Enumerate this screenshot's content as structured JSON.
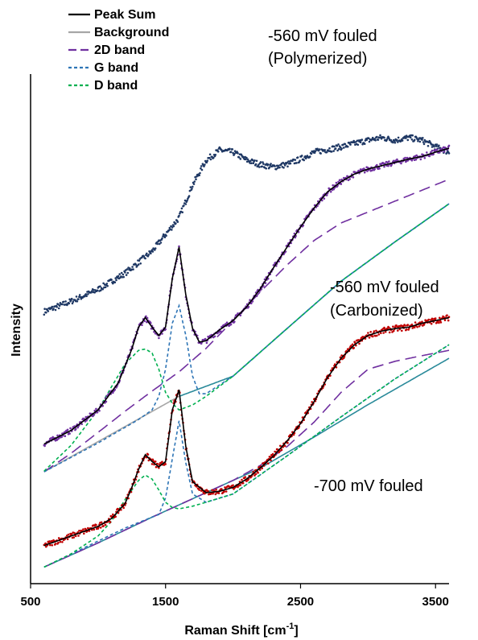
{
  "chart_data": {
    "type": "line",
    "xlabel_main": "Raman Shift [cm",
    "xlabel_sup": "-1",
    "xlabel_tail": "]",
    "ylabel": "Intensity",
    "xlim": [
      500,
      3600
    ],
    "xticks": [
      500,
      1500,
      2500,
      3500
    ],
    "legend_position": "top-left",
    "legend": [
      {
        "name": "Peak Sum",
        "color": "#000000",
        "dash": "solid"
      },
      {
        "name": "Background",
        "color": "#a6a6a6",
        "dash": "solid"
      },
      {
        "name": "2D band",
        "color": "#7030a0",
        "dash": "long-dash"
      },
      {
        "name": "G band",
        "color": "#2e75b6",
        "dash": "short-dash"
      },
      {
        "name": "D band",
        "color": "#00b050",
        "dash": "short-dash"
      }
    ],
    "annotations": [
      {
        "line1": "-560 mV fouled",
        "line2": "(Polymerized)"
      },
      {
        "line1": "-560 mV fouled",
        "line2": "(Carbonized)"
      },
      {
        "line1": "-700 mV fouled",
        "line2": ""
      }
    ],
    "colors": {
      "polymerized": "#1f3864",
      "carbonized": "#7030a0",
      "minus700": "#c00000"
    },
    "series": [
      {
        "id": "polymerized",
        "color": "#1f3864",
        "x": [
          600,
          800,
          1000,
          1200,
          1400,
          1600,
          1700,
          1800,
          1900,
          2000,
          2100,
          2200,
          2300,
          2400,
          2500,
          2600,
          2700,
          2800,
          2900,
          3000,
          3100,
          3200,
          3300,
          3400,
          3500,
          3600
        ],
        "y": [
          5.02,
          5.33,
          5.69,
          6.18,
          6.84,
          7.86,
          8.85,
          9.59,
          9.9,
          9.84,
          9.6,
          9.47,
          9.39,
          9.47,
          9.63,
          9.84,
          9.92,
          10.0,
          10.1,
          10.2,
          10.28,
          10.2,
          10.28,
          10.2,
          10.0,
          9.84
        ],
        "noise": 0.09
      },
      {
        "id": "carbonized",
        "color": "#7030a0",
        "peak_x": [
          600,
          800,
          1000,
          1150,
          1250,
          1300,
          1350,
          1400,
          1450,
          1500,
          1550,
          1600,
          1650,
          1700,
          1750,
          1800,
          1900,
          2000,
          2100,
          2200,
          2300,
          2400,
          2500,
          2600,
          2700,
          2800,
          2900,
          3000,
          3100,
          3200,
          3300,
          3400,
          3500,
          3600
        ],
        "peak_y": [
          1.02,
          1.43,
          2.05,
          2.87,
          3.89,
          4.55,
          4.84,
          4.55,
          4.3,
          4.55,
          6.02,
          6.97,
          5.53,
          4.51,
          4.1,
          4.14,
          4.47,
          4.75,
          5.16,
          5.7,
          6.35,
          6.97,
          7.58,
          8.15,
          8.64,
          8.95,
          9.18,
          9.33,
          9.43,
          9.53,
          9.63,
          9.71,
          9.84,
          9.96
        ],
        "background_x": [
          600,
          1600
        ],
        "background_y": [
          0.18,
          2.46
        ],
        "twod_x": [
          600,
          800,
          1000,
          1200,
          1400,
          1600,
          1800,
          2000,
          2200,
          2400,
          2600,
          2800,
          3000,
          3200,
          3400,
          3600
        ],
        "twod_y": [
          0.18,
          0.74,
          1.37,
          2.01,
          2.62,
          3.2,
          3.91,
          4.75,
          5.61,
          6.43,
          7.17,
          7.7,
          8.03,
          8.36,
          8.69,
          9.02
        ],
        "g_x": [
          600,
          1000,
          1300,
          1400,
          1450,
          1500,
          1550,
          1600,
          1650,
          1700,
          1750,
          1800,
          2000,
          2400,
          2800,
          3200,
          3600
        ],
        "g_y": [
          0.18,
          1.05,
          1.76,
          2.05,
          2.46,
          3.28,
          4.67,
          5.2,
          4.3,
          3.07,
          2.54,
          2.54,
          3.07,
          4.51,
          5.94,
          7.13,
          8.28
        ],
        "d_x": [
          600,
          800,
          1000,
          1100,
          1200,
          1300,
          1350,
          1400,
          1450,
          1500,
          1550,
          1600,
          1700,
          1800,
          2000,
          2400,
          2800,
          3200,
          3600
        ],
        "d_y": [
          0.2,
          0.98,
          2.05,
          2.75,
          3.44,
          3.85,
          3.89,
          3.77,
          3.28,
          2.58,
          2.25,
          2.05,
          2.2,
          2.46,
          3.07,
          4.51,
          5.94,
          7.13,
          8.28
        ],
        "noise": 0.08
      },
      {
        "id": "minus700",
        "color": "#c00000",
        "peak_x": [
          600,
          800,
          1000,
          1100,
          1200,
          1250,
          1300,
          1350,
          1400,
          1450,
          1500,
          1550,
          1600,
          1650,
          1700,
          1800,
          1900,
          2000,
          2100,
          2200,
          2300,
          2400,
          2500,
          2600,
          2700,
          2800,
          2900,
          3000,
          3100,
          3200,
          3300,
          3400,
          3500,
          3600
        ],
        "peak_y": [
          -2.05,
          -1.76,
          -1.47,
          -1.23,
          -0.78,
          -0.29,
          0.25,
          0.7,
          0.49,
          0.33,
          0.49,
          2.05,
          2.66,
          0.94,
          -0.12,
          -0.45,
          -0.41,
          -0.29,
          -0.04,
          0.29,
          0.66,
          1.11,
          1.64,
          2.3,
          3.03,
          3.61,
          4.02,
          4.3,
          4.43,
          4.51,
          4.55,
          4.67,
          4.75,
          4.84
        ],
        "twod_x": [
          600,
          1000,
          1400,
          1800,
          2000,
          2200,
          2400,
          2600,
          2800,
          3000,
          3200,
          3400,
          3600
        ],
        "twod_y": [
          -2.7,
          -1.97,
          -1.19,
          -0.45,
          -0.08,
          0.37,
          0.94,
          1.68,
          2.58,
          3.28,
          3.52,
          3.69,
          3.85
        ],
        "g_x": [
          600,
          1200,
          1400,
          1450,
          1500,
          1550,
          1600,
          1650,
          1700,
          1800,
          2000,
          2400,
          2800,
          3200,
          3600
        ],
        "g_y": [
          -2.7,
          -1.52,
          -1.19,
          -1.11,
          -0.61,
          0.57,
          1.72,
          0.45,
          -0.49,
          -0.74,
          -0.49,
          0.66,
          1.84,
          2.99,
          4.02
        ],
        "d_x": [
          600,
          800,
          1000,
          1100,
          1200,
          1300,
          1350,
          1400,
          1450,
          1500,
          1550,
          1600,
          1700,
          1800,
          2000,
          2400,
          2800,
          3200,
          3600
        ],
        "d_y": [
          -2.7,
          -2.3,
          -1.76,
          -1.31,
          -0.66,
          -0.08,
          0.08,
          -0.04,
          -0.37,
          -0.74,
          -0.9,
          -0.94,
          -0.86,
          -0.74,
          -0.49,
          0.66,
          1.84,
          2.99,
          4.02
        ],
        "baseline_x": [
          600,
          1000,
          1400,
          1800,
          2200,
          2600,
          3000,
          3300,
          3600
        ],
        "baseline_y": [
          -2.7,
          -1.97,
          -1.19,
          -0.45,
          0.29,
          1.23,
          2.21,
          2.91,
          3.61
        ],
        "noise": 0.09
      }
    ]
  }
}
